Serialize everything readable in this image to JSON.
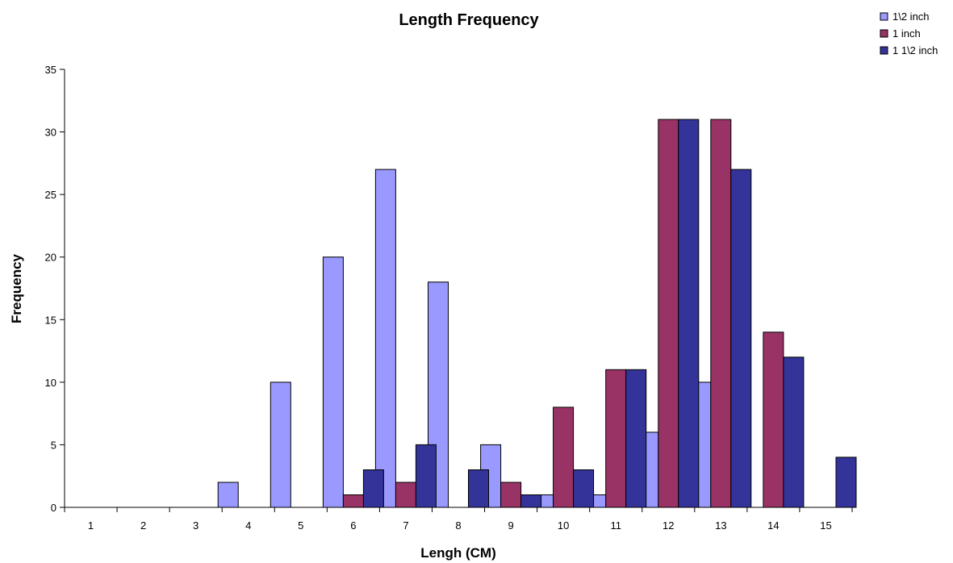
{
  "chart_data": {
    "type": "bar",
    "title": "Length Frequency",
    "xlabel": "Lengh (CM)",
    "ylabel": "Frequency",
    "ylim": [
      0,
      35
    ],
    "yticks": [
      "0",
      "5",
      "10",
      "15",
      "20",
      "25",
      "30",
      "35"
    ],
    "categories": [
      "1",
      "2",
      "3",
      "4",
      "5",
      "6",
      "7",
      "8",
      "9",
      "10",
      "11",
      "12",
      "13",
      "14",
      "15"
    ],
    "legend_position": "top-right",
    "grid": false,
    "series": [
      {
        "name": "1\\2 inch",
        "color": "#9999ff",
        "values": [
          0,
          0,
          0,
          2,
          10,
          20,
          27,
          18,
          5,
          1,
          1,
          6,
          10,
          0,
          0
        ]
      },
      {
        "name": "1 inch",
        "color": "#993366",
        "values": [
          0,
          0,
          0,
          0,
          0,
          1,
          2,
          0,
          2,
          8,
          11,
          31,
          31,
          14,
          0
        ]
      },
      {
        "name": "1 1\\2 inch",
        "color": "#333399",
        "values": [
          0,
          0,
          0,
          0,
          0,
          3,
          5,
          3,
          1,
          3,
          11,
          31,
          27,
          12,
          4
        ]
      }
    ]
  }
}
